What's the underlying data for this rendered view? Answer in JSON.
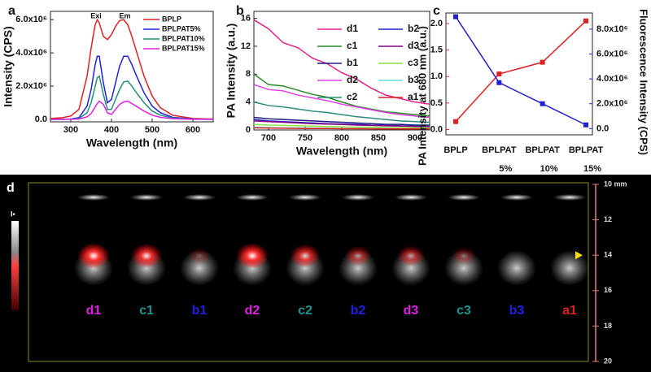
{
  "chart_data": [
    {
      "type": "line",
      "label": "a",
      "xlabel": "Wavelength (nm)",
      "ylabel": "Intensity (CPS)",
      "annotations": [
        "Exi",
        "Em"
      ],
      "x": [
        250,
        280,
        300,
        320,
        340,
        350,
        360,
        365,
        370,
        380,
        390,
        400,
        410,
        420,
        430,
        440,
        450,
        460,
        480,
        500,
        520,
        550,
        600,
        650
      ],
      "xlim": [
        250,
        650
      ],
      "xticks": [
        300,
        400,
        500,
        600
      ],
      "ylim": [
        -150000,
        6500000
      ],
      "yticks": [
        {
          "value": 0,
          "label": "0.0"
        },
        {
          "value": 2000000,
          "label": "2.0x10⁶"
        },
        {
          "value": 4000000,
          "label": "4.0x10⁶"
        },
        {
          "value": 6000000,
          "label": "6.0x10⁶"
        }
      ],
      "series": [
        {
          "name": "BPLP",
          "color": "#e02020",
          "values": [
            50000,
            100000,
            200000,
            600000,
            2600000,
            4300000,
            5700000,
            6000000,
            5800000,
            5000000,
            4800000,
            5100000,
            5600000,
            5950000,
            6000000,
            5700000,
            5000000,
            4200000,
            2600000,
            1400000,
            700000,
            250000,
            50000,
            20000
          ]
        },
        {
          "name": "BPLPAT5%",
          "color": "#2020e0",
          "values": [
            0,
            0,
            20000,
            100000,
            800000,
            1800000,
            3300000,
            3800000,
            3800000,
            2200000,
            1000000,
            1200000,
            2200000,
            3200000,
            3800000,
            3800000,
            3300000,
            2700000,
            1600000,
            800000,
            400000,
            120000,
            20000,
            0
          ]
        },
        {
          "name": "BPLPAT10%",
          "color": "#20907a",
          "values": [
            0,
            0,
            10000,
            50000,
            400000,
            1000000,
            2000000,
            2500000,
            2600000,
            1500000,
            600000,
            600000,
            1200000,
            1800000,
            2250000,
            2300000,
            2000000,
            1650000,
            1000000,
            500000,
            250000,
            80000,
            10000,
            0
          ]
        },
        {
          "name": "BPLPAT15%",
          "color": "#e020e0",
          "values": [
            0,
            0,
            0,
            20000,
            150000,
            350000,
            750000,
            950000,
            1100000,
            900000,
            400000,
            300000,
            600000,
            900000,
            1050000,
            1100000,
            950000,
            800000,
            500000,
            250000,
            120000,
            40000,
            0,
            0
          ]
        }
      ]
    },
    {
      "type": "line",
      "label": "b",
      "xlabel": "Wavelength (nm)",
      "ylabel": "PA Intensity (a.u.)",
      "x": [
        680,
        700,
        720,
        740,
        760,
        780,
        800,
        820,
        840,
        860,
        880,
        900,
        920
      ],
      "xlim": [
        680,
        920
      ],
      "xticks": [
        700,
        750,
        800,
        850,
        900
      ],
      "ylim": [
        0,
        17
      ],
      "yticks": [
        0,
        4,
        8,
        12,
        16
      ],
      "series": [
        {
          "name": "d1",
          "color": "#e0208a",
          "values": [
            15.8,
            14.5,
            12.5,
            11.8,
            10.3,
            9.5,
            8.2,
            7.3,
            6.0,
            5.0,
            4.5,
            4.0,
            3.7
          ]
        },
        {
          "name": "c1",
          "color": "#2a8a2a",
          "values": [
            8.0,
            6.5,
            6.3,
            5.7,
            5.1,
            4.7,
            4.0,
            3.4,
            3.0,
            2.6,
            2.4,
            2.2,
            2.0
          ]
        },
        {
          "name": "b1",
          "color": "#1a1a80",
          "values": [
            1.8,
            1.6,
            1.5,
            1.4,
            1.3,
            1.2,
            1.1,
            1.0,
            0.9,
            0.8,
            0.8,
            0.7,
            0.7
          ]
        },
        {
          "name": "d2",
          "color": "#e040e0",
          "values": [
            6.5,
            5.8,
            5.6,
            5.0,
            4.6,
            4.2,
            3.7,
            3.3,
            2.9,
            2.5,
            2.2,
            2.0,
            1.8
          ]
        },
        {
          "name": "c2",
          "color": "#2a8a80",
          "values": [
            4.0,
            3.5,
            3.3,
            3.0,
            2.7,
            2.5,
            2.2,
            1.9,
            1.7,
            1.5,
            1.3,
            1.2,
            1.1
          ]
        },
        {
          "name": "b2",
          "color": "#2020d0",
          "values": [
            1.5,
            1.3,
            1.2,
            1.1,
            1.0,
            0.9,
            0.85,
            0.8,
            0.7,
            0.65,
            0.6,
            0.55,
            0.5
          ]
        },
        {
          "name": "d3",
          "color": "#800080",
          "values": [
            1.3,
            1.2,
            1.1,
            1.0,
            0.9,
            0.85,
            0.8,
            0.7,
            0.65,
            0.6,
            0.55,
            0.5,
            0.45
          ]
        },
        {
          "name": "c3",
          "color": "#90e040",
          "values": [
            0.8,
            0.7,
            0.65,
            0.6,
            0.55,
            0.5,
            0.45,
            0.4,
            0.4,
            0.35,
            0.3,
            0.3,
            0.3
          ]
        },
        {
          "name": "b3",
          "color": "#60e0e0",
          "values": [
            0.4,
            0.35,
            0.3,
            0.3,
            0.25,
            0.25,
            0.2,
            0.2,
            0.2,
            0.2,
            0.15,
            0.15,
            0.15
          ]
        },
        {
          "name": "a1",
          "color": "#e02020",
          "values": [
            0.3,
            0.28,
            0.25,
            0.22,
            0.2,
            0.2,
            0.18,
            0.17,
            0.16,
            0.15,
            0.15,
            0.14,
            0.14
          ]
        }
      ]
    },
    {
      "type": "line",
      "label": "c",
      "ylabel": "PA Intensity at 680 nm (a.u.)",
      "y2label": "Fluorescence Intensity (CPS)",
      "categories": [
        "BPLP",
        "BPLPAT 5%",
        "BPLPAT 10%",
        "BPLPAT 15%"
      ],
      "ylim": [
        -0.1,
        2.2
      ],
      "yticks": [
        {
          "value": 0,
          "label": "0.0"
        },
        0.5,
        {
          "value": 1,
          "label": "1.0"
        },
        1.5,
        {
          "value": 2,
          "label": "2.0"
        }
      ],
      "y2lim": [
        -500000,
        9300000
      ],
      "y2ticks": [
        {
          "value": 0,
          "label": "0.0"
        },
        {
          "value": 2000000,
          "label": "2.0x10⁶"
        },
        {
          "value": 4000000,
          "label": "4.0x10⁶"
        },
        {
          "value": 6000000,
          "label": "6.0x10⁶"
        },
        {
          "value": 8000000,
          "label": "8.0x10⁶"
        }
      ],
      "series": [
        {
          "name": "PA Intensity",
          "color": "#e02020",
          "values": [
            0.15,
            1.05,
            1.27,
            2.05
          ]
        },
        {
          "name": "Fluorescence Intensity",
          "color": "#2020d0",
          "axis": "y2",
          "values": [
            9000000,
            3700000,
            2000000,
            300000
          ]
        }
      ]
    }
  ],
  "panel_d": {
    "label": "d",
    "colorbar_label": "I•",
    "samples": [
      {
        "name": "d1",
        "color": "#e020e0"
      },
      {
        "name": "c1",
        "color": "#209090"
      },
      {
        "name": "b1",
        "color": "#2020e0"
      },
      {
        "name": "d2",
        "color": "#e020e0"
      },
      {
        "name": "c2",
        "color": "#209090"
      },
      {
        "name": "b2",
        "color": "#2020e0"
      },
      {
        "name": "d3",
        "color": "#e020e0"
      },
      {
        "name": "c3",
        "color": "#209090"
      },
      {
        "name": "b3",
        "color": "#2020e0"
      },
      {
        "name": "a1",
        "color": "#e02020"
      }
    ],
    "depth_lim": [
      10,
      20
    ],
    "depth_ticks": [
      {
        "value": 10,
        "label": "10 mm"
      },
      12,
      14,
      16,
      18,
      20
    ]
  }
}
